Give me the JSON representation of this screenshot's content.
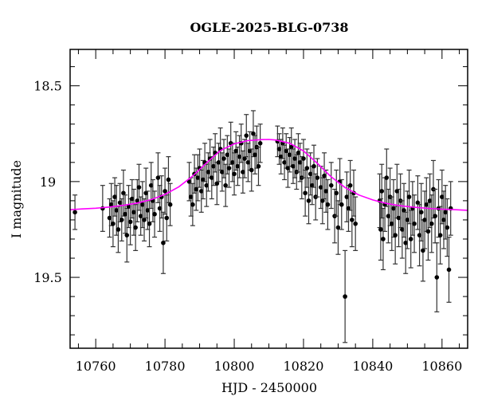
{
  "chart_data": {
    "type": "scatter",
    "title": "OGLE-2025-BLG-0738",
    "xlabel": "HJD - 2450000",
    "ylabel": "I magnitude",
    "xlim": [
      10752.6,
      10867.4
    ],
    "ylim": [
      19.87,
      18.31
    ],
    "y_inverted": true,
    "x_ticks": [
      "10760",
      "10780",
      "10800",
      "10820",
      "10840",
      "10860"
    ],
    "x_tick_values": [
      10760,
      10780,
      10800,
      10820,
      10840,
      10860
    ],
    "y_ticks": [
      "18.5",
      "19",
      "19.5"
    ],
    "y_tick_values": [
      18.5,
      19.0,
      19.5
    ],
    "grid": false,
    "colors": {
      "points": "#000000",
      "errorbars": "#000000",
      "model": "#ff00ff"
    },
    "series": [
      {
        "kind": "points-with-errorbars",
        "points": [
          [
            10754.0,
            19.16,
            0.09
          ],
          [
            10762.0,
            19.14,
            0.12
          ],
          [
            10764.0,
            19.19,
            0.1
          ],
          [
            10764.5,
            19.12,
            0.11
          ],
          [
            10765.0,
            19.22,
            0.12
          ],
          [
            10765.5,
            19.08,
            0.1
          ],
          [
            10766.0,
            19.15,
            0.13
          ],
          [
            10766.5,
            19.25,
            0.12
          ],
          [
            10767.0,
            19.11,
            0.1
          ],
          [
            10767.5,
            19.2,
            0.11
          ],
          [
            10768.0,
            19.06,
            0.12
          ],
          [
            10768.5,
            19.17,
            0.1
          ],
          [
            10769.0,
            19.28,
            0.14
          ],
          [
            10769.5,
            19.13,
            0.11
          ],
          [
            10770.0,
            19.21,
            0.12
          ],
          [
            10770.5,
            19.09,
            0.1
          ],
          [
            10771.0,
            19.16,
            0.12
          ],
          [
            10771.5,
            19.24,
            0.12
          ],
          [
            10772.0,
            19.1,
            0.11
          ],
          [
            10772.5,
            19.03,
            0.12
          ],
          [
            10773.0,
            19.18,
            0.1
          ],
          [
            10773.5,
            19.12,
            0.12
          ],
          [
            10774.0,
            19.2,
            0.11
          ],
          [
            10774.5,
            19.06,
            0.13
          ],
          [
            10775.0,
            19.15,
            0.1
          ],
          [
            10775.5,
            19.22,
            0.12
          ],
          [
            10776.0,
            19.02,
            0.12
          ],
          [
            10776.5,
            19.1,
            0.11
          ],
          [
            10777.0,
            19.17,
            0.12
          ],
          [
            10778.0,
            18.98,
            0.13
          ],
          [
            10778.5,
            19.14,
            0.12
          ],
          [
            10779.0,
            19.08,
            0.11
          ],
          [
            10779.5,
            19.32,
            0.16
          ],
          [
            10780.0,
            19.05,
            0.12
          ],
          [
            10780.5,
            19.19,
            0.12
          ],
          [
            10781.0,
            18.99,
            0.12
          ],
          [
            10781.5,
            19.12,
            0.11
          ],
          [
            10787.0,
            19.0,
            0.1
          ],
          [
            10787.5,
            19.08,
            0.1
          ],
          [
            10788.0,
            19.12,
            0.11
          ],
          [
            10788.5,
            18.96,
            0.1
          ],
          [
            10789.0,
            19.04,
            0.11
          ],
          [
            10789.5,
            18.98,
            0.12
          ],
          [
            10790.0,
            18.93,
            0.1
          ],
          [
            10790.5,
            19.05,
            0.11
          ],
          [
            10791.0,
            18.99,
            0.1
          ],
          [
            10791.5,
            18.9,
            0.1
          ],
          [
            10792.0,
            19.02,
            0.11
          ],
          [
            10792.5,
            18.95,
            0.1
          ],
          [
            10793.0,
            18.88,
            0.1
          ],
          [
            10793.5,
            18.98,
            0.11
          ],
          [
            10794.0,
            18.92,
            0.1
          ],
          [
            10794.5,
            18.85,
            0.1
          ],
          [
            10795.0,
            19.01,
            0.11
          ],
          [
            10795.5,
            18.9,
            0.1
          ],
          [
            10796.0,
            18.83,
            0.11
          ],
          [
            10796.5,
            18.95,
            0.1
          ],
          [
            10797.0,
            18.88,
            0.1
          ],
          [
            10797.5,
            19.02,
            0.11
          ],
          [
            10798.0,
            18.86,
            0.1
          ],
          [
            10798.5,
            18.93,
            0.1
          ],
          [
            10799.0,
            18.8,
            0.11
          ],
          [
            10799.5,
            18.9,
            0.1
          ],
          [
            10800.0,
            18.96,
            0.11
          ],
          [
            10800.5,
            18.84,
            0.1
          ],
          [
            10801.0,
            18.92,
            0.1
          ],
          [
            10801.5,
            18.87,
            0.11
          ],
          [
            10802.0,
            18.8,
            0.1
          ],
          [
            10802.5,
            18.95,
            0.11
          ],
          [
            10803.0,
            18.88,
            0.1
          ],
          [
            10803.5,
            18.76,
            0.11
          ],
          [
            10804.0,
            18.9,
            0.1
          ],
          [
            10804.5,
            18.84,
            0.1
          ],
          [
            10805.0,
            18.94,
            0.11
          ],
          [
            10805.5,
            18.75,
            0.12
          ],
          [
            10806.0,
            18.86,
            0.1
          ],
          [
            10806.5,
            18.82,
            0.11
          ],
          [
            10807.0,
            18.92,
            0.1
          ],
          [
            10807.5,
            18.8,
            0.1
          ],
          [
            10812.5,
            18.79,
            0.08
          ],
          [
            10813.0,
            18.83,
            0.08
          ],
          [
            10813.5,
            18.87,
            0.09
          ],
          [
            10814.0,
            18.8,
            0.08
          ],
          [
            10814.5,
            18.9,
            0.09
          ],
          [
            10815.0,
            18.84,
            0.09
          ],
          [
            10815.5,
            18.93,
            0.1
          ],
          [
            10816.0,
            18.86,
            0.09
          ],
          [
            10816.5,
            18.82,
            0.1
          ],
          [
            10817.0,
            18.92,
            0.09
          ],
          [
            10817.5,
            18.88,
            0.1
          ],
          [
            10818.0,
            18.95,
            0.09
          ],
          [
            10818.5,
            18.85,
            0.1
          ],
          [
            10819.0,
            18.9,
            0.1
          ],
          [
            10819.5,
            18.98,
            0.11
          ],
          [
            10820.0,
            18.88,
            0.1
          ],
          [
            10820.5,
            19.06,
            0.12
          ],
          [
            10821.0,
            18.93,
            0.1
          ],
          [
            10821.5,
            19.1,
            0.12
          ],
          [
            10822.0,
            18.96,
            0.11
          ],
          [
            10822.5,
            19.02,
            0.1
          ],
          [
            10823.0,
            18.92,
            0.11
          ],
          [
            10823.5,
            19.08,
            0.12
          ],
          [
            10824.0,
            18.98,
            0.1
          ],
          [
            10825.0,
            19.03,
            0.11
          ],
          [
            10825.5,
            19.1,
            0.12
          ],
          [
            10826.0,
            18.97,
            0.12
          ],
          [
            10826.5,
            19.05,
            0.11
          ],
          [
            10827.0,
            19.12,
            0.13
          ],
          [
            10828.0,
            19.02,
            0.12
          ],
          [
            10829.0,
            19.18,
            0.14
          ],
          [
            10829.5,
            19.06,
            0.12
          ],
          [
            10830.0,
            19.24,
            0.14
          ],
          [
            10830.5,
            19.0,
            0.12
          ],
          [
            10831.0,
            19.12,
            0.13
          ],
          [
            10832.0,
            19.6,
            0.24
          ],
          [
            10832.5,
            19.08,
            0.13
          ],
          [
            10833.0,
            19.14,
            0.12
          ],
          [
            10833.5,
            19.02,
            0.13
          ],
          [
            10834.0,
            19.2,
            0.14
          ],
          [
            10834.5,
            19.06,
            0.12
          ],
          [
            10835.0,
            19.22,
            0.14
          ],
          [
            10842.0,
            19.1,
            0.14
          ],
          [
            10842.3,
            19.25,
            0.16
          ],
          [
            10842.6,
            19.05,
            0.14
          ],
          [
            10843.0,
            19.3,
            0.16
          ],
          [
            10843.5,
            19.12,
            0.14
          ],
          [
            10844.0,
            18.98,
            0.15
          ],
          [
            10844.5,
            19.18,
            0.14
          ],
          [
            10845.0,
            19.08,
            0.15
          ],
          [
            10845.5,
            19.22,
            0.14
          ],
          [
            10846.0,
            19.14,
            0.15
          ],
          [
            10846.5,
            19.28,
            0.15
          ],
          [
            10847.0,
            19.05,
            0.14
          ],
          [
            10847.5,
            19.19,
            0.15
          ],
          [
            10848.0,
            19.1,
            0.14
          ],
          [
            10848.5,
            19.25,
            0.15
          ],
          [
            10849.0,
            19.15,
            0.14
          ],
          [
            10849.5,
            19.32,
            0.16
          ],
          [
            10850.0,
            19.2,
            0.15
          ],
          [
            10850.5,
            19.08,
            0.14
          ],
          [
            10851.0,
            19.3,
            0.15
          ],
          [
            10851.5,
            19.14,
            0.14
          ],
          [
            10852.0,
            19.22,
            0.15
          ],
          [
            10853.0,
            19.11,
            0.14
          ],
          [
            10853.5,
            19.28,
            0.16
          ],
          [
            10854.0,
            19.16,
            0.15
          ],
          [
            10854.5,
            19.36,
            0.16
          ],
          [
            10855.0,
            19.2,
            0.15
          ],
          [
            10855.5,
            19.12,
            0.14
          ],
          [
            10856.0,
            19.26,
            0.15
          ],
          [
            10856.5,
            19.1,
            0.14
          ],
          [
            10857.0,
            19.22,
            0.15
          ],
          [
            10857.5,
            19.04,
            0.15
          ],
          [
            10858.0,
            19.18,
            0.14
          ],
          [
            10858.5,
            19.5,
            0.18
          ],
          [
            10859.0,
            19.14,
            0.15
          ],
          [
            10859.5,
            19.28,
            0.15
          ],
          [
            10860.0,
            19.08,
            0.14
          ],
          [
            10860.5,
            19.2,
            0.15
          ],
          [
            10861.0,
            19.16,
            0.14
          ],
          [
            10861.5,
            19.24,
            0.15
          ],
          [
            10862.0,
            19.46,
            0.17
          ],
          [
            10862.5,
            19.14,
            0.14
          ]
        ]
      },
      {
        "kind": "model-curve",
        "points": [
          [
            10752,
            19.147
          ],
          [
            10756,
            19.143
          ],
          [
            10760,
            19.139
          ],
          [
            10764,
            19.133
          ],
          [
            10768,
            19.124
          ],
          [
            10772,
            19.112
          ],
          [
            10776,
            19.094
          ],
          [
            10780,
            19.067
          ],
          [
            10784,
            19.027
          ],
          [
            10788,
            18.971
          ],
          [
            10792,
            18.902
          ],
          [
            10796,
            18.838
          ],
          [
            10800,
            18.803
          ],
          [
            10804,
            18.786
          ],
          [
            10808,
            18.781
          ],
          [
            10810,
            18.78
          ],
          [
            10812,
            18.783
          ],
          [
            10816,
            18.8
          ],
          [
            10820,
            18.84
          ],
          [
            10824,
            18.905
          ],
          [
            10828,
            18.975
          ],
          [
            10832,
            19.031
          ],
          [
            10836,
            19.07
          ],
          [
            10840,
            19.096
          ],
          [
            10844,
            19.114
          ],
          [
            10848,
            19.126
          ],
          [
            10852,
            19.134
          ],
          [
            10856,
            19.14
          ],
          [
            10860,
            19.144
          ],
          [
            10864,
            19.147
          ],
          [
            10868,
            19.15
          ]
        ]
      }
    ]
  }
}
